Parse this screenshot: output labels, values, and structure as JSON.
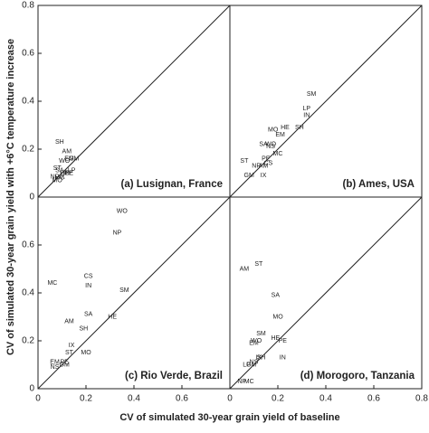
{
  "xlabel": "CV of simulated 30-year grain yield of baseline",
  "ylabel": "CV of simulated 30-year grain yield with +6°C temperature increase",
  "chart_data": [
    {
      "type": "scatter",
      "title": "(a) Lusignan, France",
      "xlim": [
        0,
        0.8
      ],
      "ylim": [
        0,
        0.8
      ],
      "yticks": [
        0,
        0.2,
        0.4,
        0.6,
        0.8
      ],
      "labels": [
        "SH",
        "AM",
        "GM",
        "EM",
        "WO",
        "ST",
        "SA",
        "IN",
        "HE",
        "PE",
        "NP",
        "MC",
        "IX",
        "MO",
        "LP"
      ],
      "x": [
        0.09,
        0.12,
        0.15,
        0.13,
        0.11,
        0.08,
        0.09,
        0.12,
        0.11,
        0.13,
        0.07,
        0.09,
        0.1,
        0.08,
        0.14
      ],
      "values": [
        0.23,
        0.19,
        0.16,
        0.16,
        0.15,
        0.12,
        0.11,
        0.1,
        0.1,
        0.1,
        0.085,
        0.08,
        0.085,
        0.07,
        0.11
      ]
    },
    {
      "type": "scatter",
      "title": "(b) Ames, USA",
      "xlim": [
        0,
        0.8
      ],
      "ylim": [
        0,
        0.8
      ],
      "labels": [
        "SM",
        "LP",
        "IN",
        "SH",
        "HE",
        "MO",
        "EM",
        "SA",
        "WO",
        "NS",
        "PE",
        "MC",
        "ST",
        "NP",
        "AM",
        "CS",
        "IX",
        "GM"
      ],
      "x": [
        0.34,
        0.32,
        0.32,
        0.29,
        0.23,
        0.18,
        0.21,
        0.14,
        0.17,
        0.17,
        0.15,
        0.2,
        0.06,
        0.11,
        0.14,
        0.16,
        0.14,
        0.08
      ],
      "values": [
        0.43,
        0.37,
        0.34,
        0.29,
        0.29,
        0.28,
        0.26,
        0.22,
        0.22,
        0.21,
        0.16,
        0.18,
        0.15,
        0.13,
        0.13,
        0.14,
        0.09,
        0.09
      ]
    },
    {
      "type": "scatter",
      "title": "(c) Rio Verde, Brazil",
      "xlim": [
        0,
        0.8
      ],
      "ylim": [
        0,
        0.8
      ],
      "xticks": [
        0,
        0.2,
        0.4,
        0.6
      ],
      "yticks": [
        0,
        0.2,
        0.4,
        0.6
      ],
      "labels": [
        "WO",
        "NP",
        "MC",
        "CS",
        "IN",
        "SM",
        "SA",
        "HE",
        "AM",
        "SH",
        "IX",
        "ST",
        "MO",
        "EM",
        "PE",
        "NS",
        "GM"
      ],
      "x": [
        0.35,
        0.33,
        0.06,
        0.21,
        0.21,
        0.36,
        0.21,
        0.31,
        0.13,
        0.19,
        0.14,
        0.13,
        0.2,
        0.07,
        0.11,
        0.07,
        0.11
      ],
      "values": [
        0.74,
        0.65,
        0.44,
        0.47,
        0.43,
        0.41,
        0.31,
        0.3,
        0.28,
        0.25,
        0.18,
        0.15,
        0.15,
        0.11,
        0.11,
        0.09,
        0.1
      ]
    },
    {
      "type": "scatter",
      "title": "(d) Morogoro, Tanzania",
      "xlim": [
        0,
        0.8
      ],
      "ylim": [
        0,
        0.8
      ],
      "xticks": [
        0,
        0.2,
        0.4,
        0.6,
        0.8
      ],
      "labels": [
        "AM",
        "ST",
        "SA",
        "MO",
        "SM",
        "HE",
        "WO",
        "EM",
        "PE",
        "IN",
        "SH",
        "IX",
        "NS",
        "LP",
        "GM",
        "NP",
        "MC"
      ],
      "x": [
        0.06,
        0.12,
        0.19,
        0.2,
        0.13,
        0.19,
        0.11,
        0.1,
        0.22,
        0.22,
        0.13,
        0.12,
        0.1,
        0.07,
        0.09,
        0.05,
        0.08
      ],
      "values": [
        0.5,
        0.52,
        0.39,
        0.3,
        0.23,
        0.21,
        0.2,
        0.19,
        0.2,
        0.13,
        0.13,
        0.13,
        0.11,
        0.1,
        0.1,
        0.03,
        0.03
      ]
    }
  ]
}
